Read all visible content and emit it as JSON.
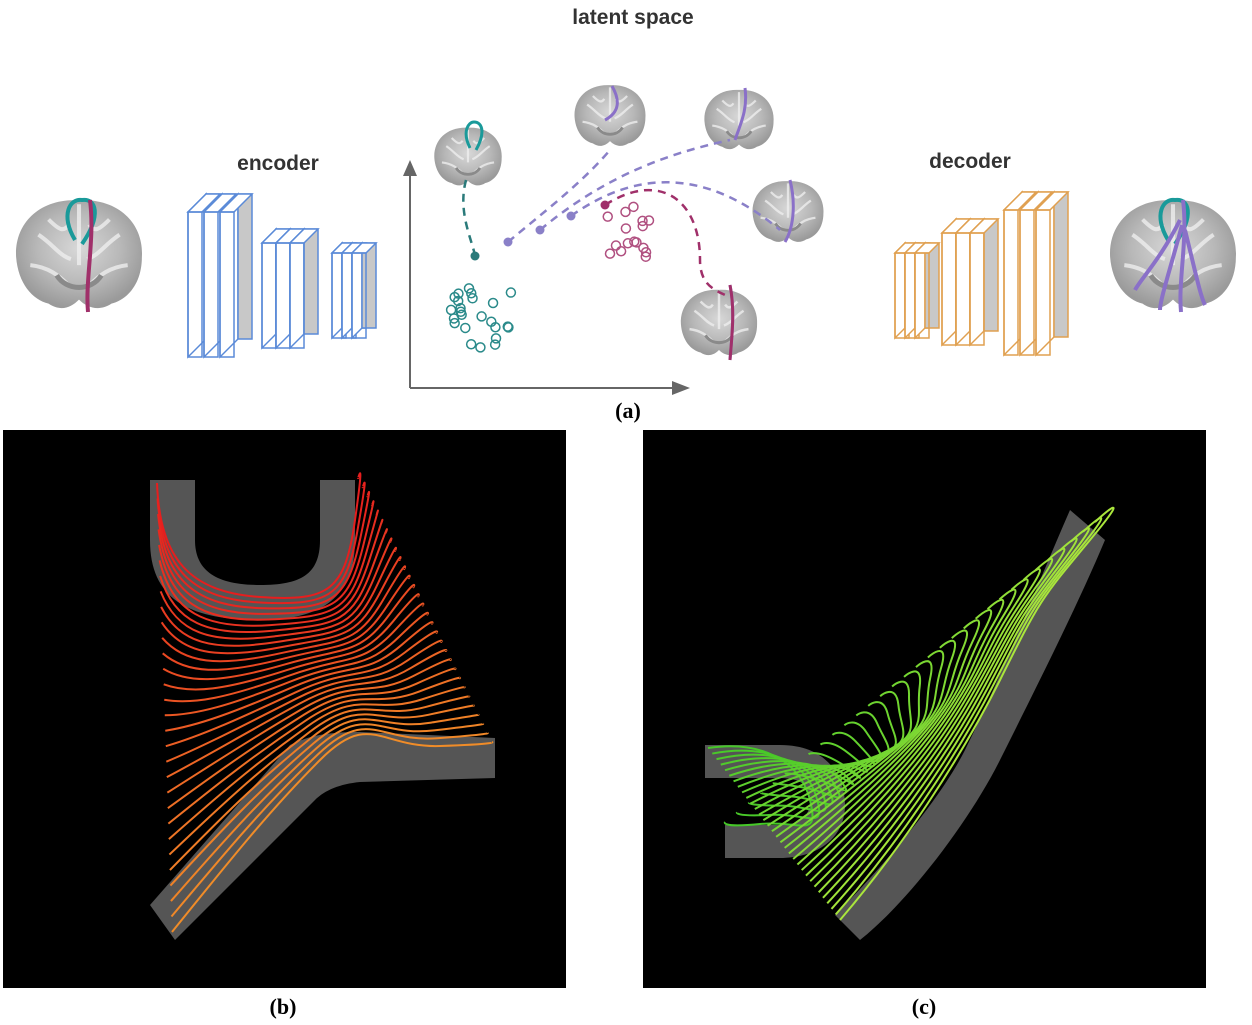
{
  "panel_a": {
    "title": "latent space",
    "encoder": "encoder",
    "decoder": "decoder",
    "caption": "(a)"
  },
  "panel_b": {
    "caption": "(b)"
  },
  "panel_c": {
    "caption": "(c)"
  }
}
